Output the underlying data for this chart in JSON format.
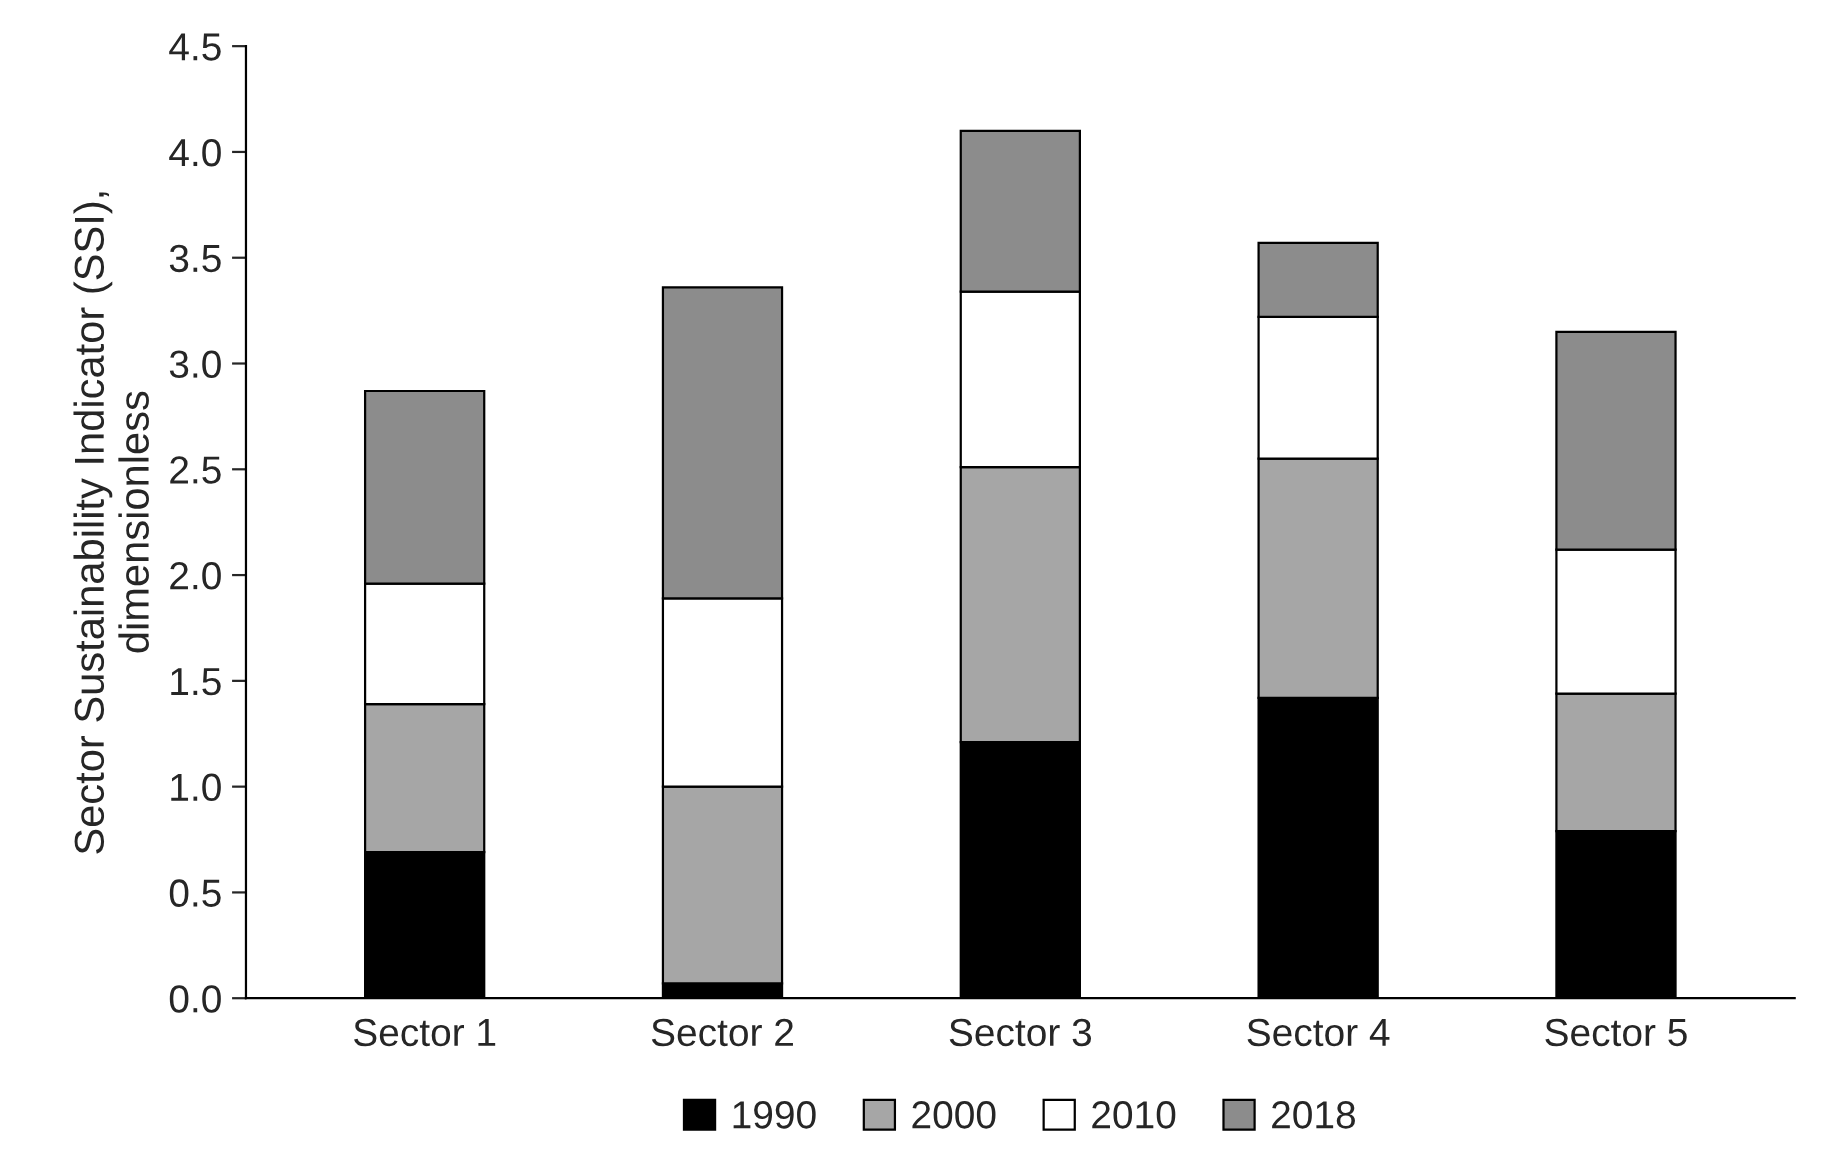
{
  "chart_data": {
    "type": "bar",
    "stacked": true,
    "ylabel": "Sector Sustainability Indicator (SSI),\ndimensionless",
    "categories": [
      "Sector 1",
      "Sector 2",
      "Sector 3",
      "Sector 4",
      "Sector 5"
    ],
    "series": [
      {
        "name": "1990",
        "color": "#000000",
        "values": [
          0.69,
          0.07,
          1.21,
          1.42,
          0.79
        ]
      },
      {
        "name": "2000",
        "color": "#a6a6a6",
        "values": [
          0.7,
          0.93,
          1.3,
          1.13,
          0.65
        ]
      },
      {
        "name": "2010",
        "color": "#ffffff",
        "values": [
          0.57,
          0.89,
          0.83,
          0.67,
          0.68
        ]
      },
      {
        "name": "2018",
        "color": "#8c8c8c",
        "values": [
          0.91,
          1.47,
          0.76,
          0.35,
          1.03
        ]
      }
    ],
    "ylim": [
      0,
      4.5
    ],
    "yticks": [
      {
        "value": 0,
        "label": "0.0"
      },
      0.5,
      {
        "value": 1,
        "label": "1.0"
      },
      1.5,
      {
        "value": 2,
        "label": "2.0"
      },
      2.5,
      {
        "value": 3,
        "label": "3.0"
      },
      3.5,
      {
        "value": 4,
        "label": "4.0"
      },
      4.5
    ],
    "grid": false,
    "legend": "bottom"
  }
}
